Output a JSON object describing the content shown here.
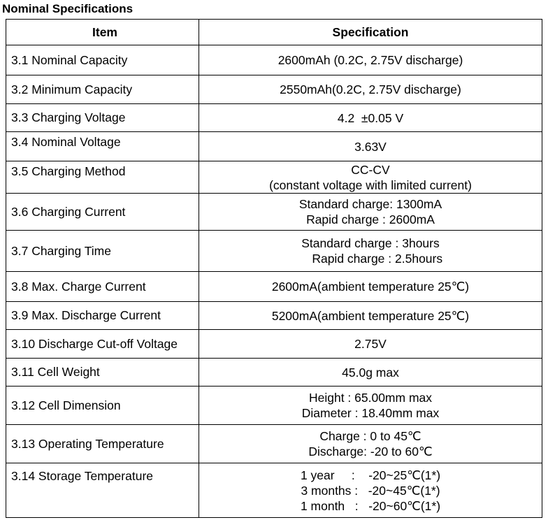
{
  "title": "Nominal Specifications",
  "table": {
    "header": [
      "Item",
      "Specification"
    ],
    "rows": [
      {
        "item": "3.1 Nominal Capacity",
        "spec": [
          "2600mAh (0.2C, 2.75V discharge)"
        ]
      },
      {
        "item": "3.2 Minimum Capacity",
        "spec": [
          "2550mAh(0.2C, 2.75V discharge)"
        ]
      },
      {
        "item": "3.3 Charging Voltage",
        "spec": [
          "4.2  ±0.05 V"
        ]
      },
      {
        "item": "3.4 Nominal Voltage",
        "spec": [
          "3.63V"
        ]
      },
      {
        "item": "3.5 Charging Method",
        "spec": [
          "CC-CV",
          "(constant voltage with limited current)"
        ]
      },
      {
        "item": "3.6 Charging Current",
        "spec": [
          "Standard charge: 1300mA",
          "Rapid charge : 2600mA"
        ]
      },
      {
        "item": "3.7 Charging Time",
        "spec": [
          "Standard charge : 3hours",
          "    Rapid charge : 2.5hours"
        ]
      },
      {
        "item": "3.8 Max. Charge Current",
        "spec": [
          "2600mA(ambient temperature 25℃)"
        ]
      },
      {
        "item": "3.9 Max. Discharge Current",
        "spec": [
          "5200mA(ambient temperature 25℃)"
        ]
      },
      {
        "item": "3.10 Discharge Cut-off Voltage",
        "spec": [
          "2.75V"
        ]
      },
      {
        "item": "3.11 Cell Weight",
        "spec": [
          "45.0g max"
        ]
      },
      {
        "item": "3.12 Cell Dimension",
        "spec": [
          "Height : 65.00mm max",
          "Diameter : 18.40mm max"
        ]
      },
      {
        "item": "3.13 Operating Temperature",
        "spec": [
          "Charge : 0 to 45℃",
          "Discharge: -20 to 60℃"
        ]
      },
      {
        "item": "3.14 Storage Temperature",
        "spec": [
          "1 year     :    -20~25℃(1*)",
          "3 months :   -20~45℃(1*)",
          "1 month   :   -20~60℃(1*)"
        ]
      }
    ]
  }
}
